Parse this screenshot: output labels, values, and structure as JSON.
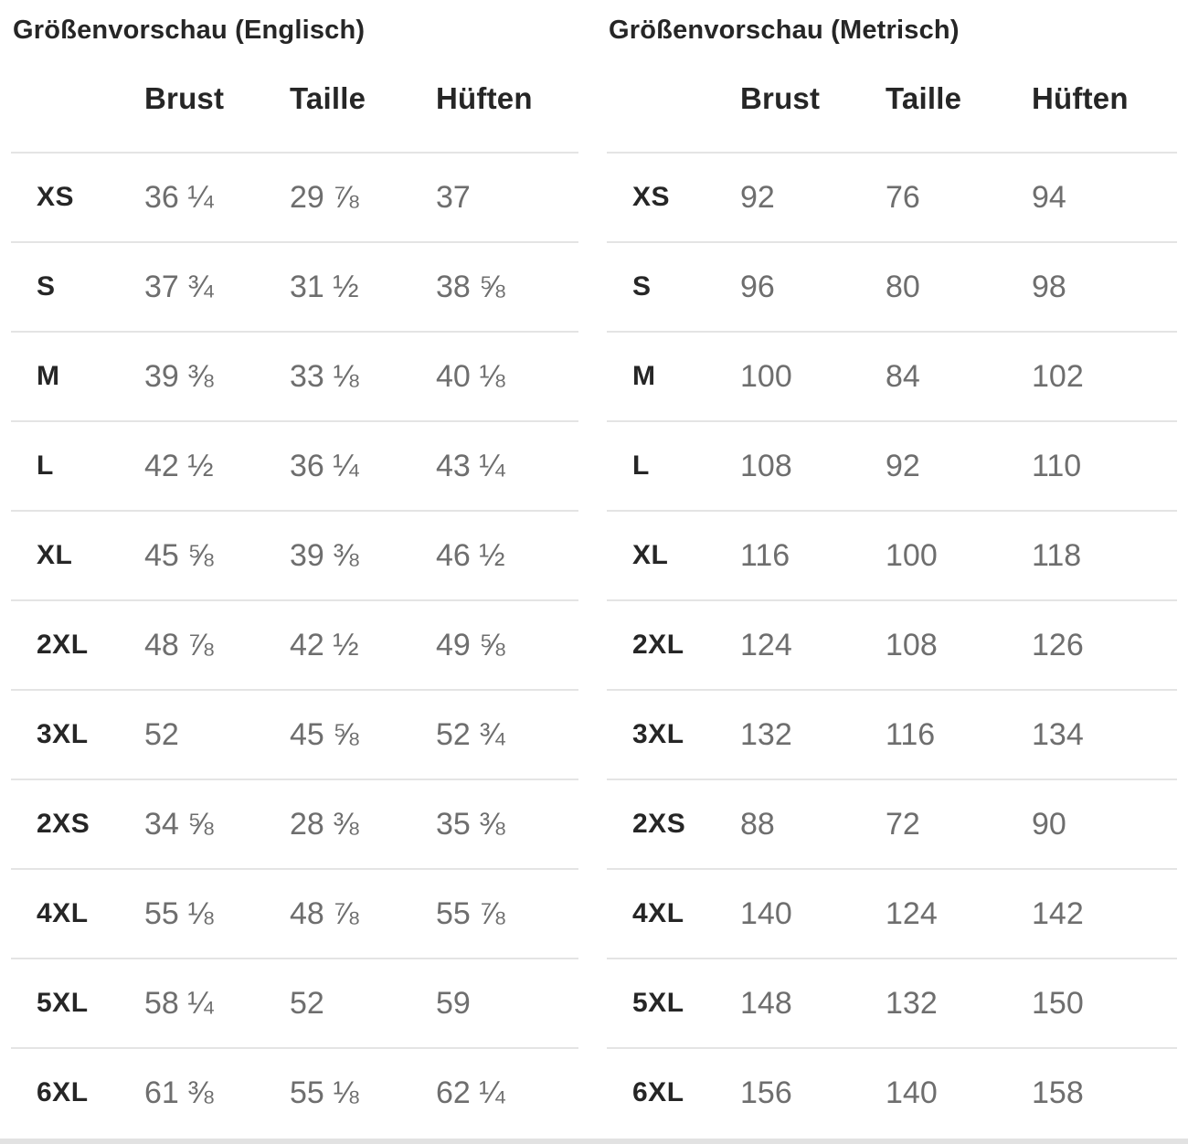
{
  "colors": {
    "heading_text": "#262626",
    "value_text": "#6e6e6e",
    "divider": "#e4e4e4",
    "background": "#ffffff"
  },
  "tables": [
    {
      "title": "Größenvorschau (Englisch)",
      "columns": [
        "Brust",
        "Taille",
        "Hüften"
      ],
      "rows": [
        {
          "size": "XS",
          "values": [
            "36 ¼",
            "29 ⅞",
            "37"
          ]
        },
        {
          "size": "S",
          "values": [
            "37 ¾",
            "31 ½",
            "38 ⅝"
          ]
        },
        {
          "size": "M",
          "values": [
            "39 ⅜",
            "33 ⅛",
            "40 ⅛"
          ]
        },
        {
          "size": "L",
          "values": [
            "42 ½",
            "36 ¼",
            "43 ¼"
          ]
        },
        {
          "size": "XL",
          "values": [
            "45 ⅝",
            "39 ⅜",
            "46 ½"
          ]
        },
        {
          "size": "2XL",
          "values": [
            "48 ⅞",
            "42 ½",
            "49 ⅝"
          ]
        },
        {
          "size": "3XL",
          "values": [
            "52",
            "45 ⅝",
            "52 ¾"
          ]
        },
        {
          "size": "2XS",
          "values": [
            "34 ⅝",
            "28 ⅜",
            "35 ⅜"
          ]
        },
        {
          "size": "4XL",
          "values": [
            "55 ⅛",
            "48 ⅞",
            "55 ⅞"
          ]
        },
        {
          "size": "5XL",
          "values": [
            "58 ¼",
            "52",
            "59"
          ]
        },
        {
          "size": "6XL",
          "values": [
            "61 ⅜",
            "55 ⅛",
            "62 ¼"
          ]
        }
      ]
    },
    {
      "title": "Größenvorschau (Metrisch)",
      "columns": [
        "Brust",
        "Taille",
        "Hüften"
      ],
      "rows": [
        {
          "size": "XS",
          "values": [
            "92",
            "76",
            "94"
          ]
        },
        {
          "size": "S",
          "values": [
            "96",
            "80",
            "98"
          ]
        },
        {
          "size": "M",
          "values": [
            "100",
            "84",
            "102"
          ]
        },
        {
          "size": "L",
          "values": [
            "108",
            "92",
            "110"
          ]
        },
        {
          "size": "XL",
          "values": [
            "116",
            "100",
            "118"
          ]
        },
        {
          "size": "2XL",
          "values": [
            "124",
            "108",
            "126"
          ]
        },
        {
          "size": "3XL",
          "values": [
            "132",
            "116",
            "134"
          ]
        },
        {
          "size": "2XS",
          "values": [
            "88",
            "72",
            "90"
          ]
        },
        {
          "size": "4XL",
          "values": [
            "140",
            "124",
            "142"
          ]
        },
        {
          "size": "5XL",
          "values": [
            "148",
            "132",
            "150"
          ]
        },
        {
          "size": "6XL",
          "values": [
            "156",
            "140",
            "158"
          ]
        }
      ]
    }
  ]
}
